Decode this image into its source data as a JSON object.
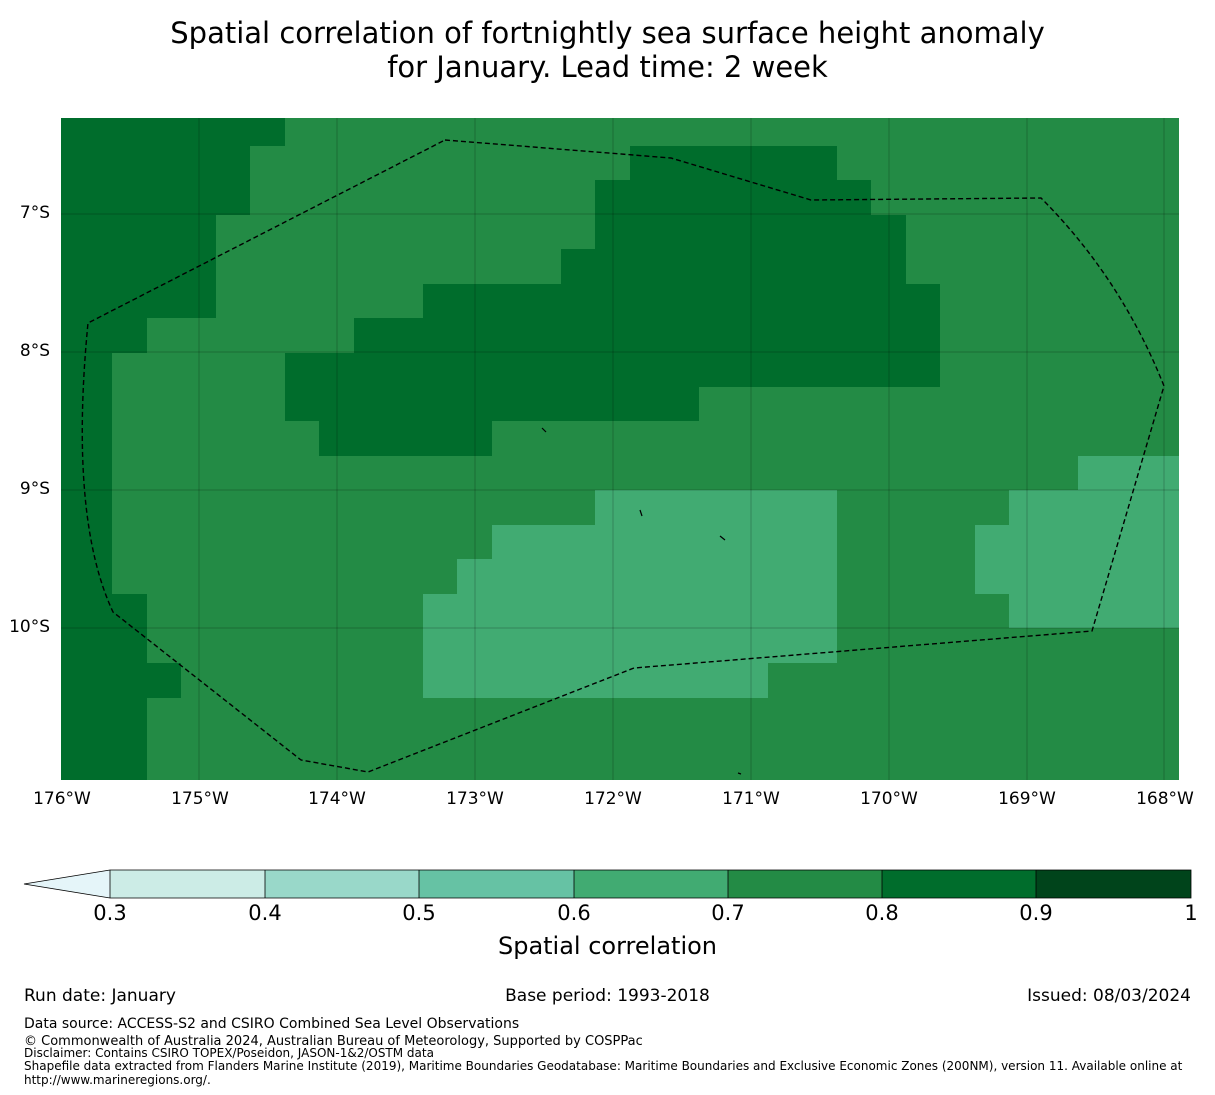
{
  "title": {
    "line1": "Spatial correlation of fortnightly sea surface height anomaly",
    "line2": "for January. Lead time: 2 week"
  },
  "map": {
    "lat_labels": [
      "7°S",
      "8°S",
      "9°S",
      "10°S"
    ],
    "lon_labels": [
      "176°W",
      "175°W",
      "174°W",
      "173°W",
      "172°W",
      "171°W",
      "170°W",
      "169°W",
      "168°W"
    ],
    "colors": {
      "c06_07": "#41ab72",
      "c07_08": "#238b45",
      "c08_09": "#006d2c",
      "border": "#000000"
    }
  },
  "colorbar": {
    "label": "Spatial correlation",
    "ticks": [
      "0.3",
      "0.4",
      "0.5",
      "0.6",
      "0.7",
      "0.8",
      "0.9",
      "1"
    ],
    "bins": [
      {
        "range": "<0.3",
        "color": "#e5f5f9"
      },
      {
        "range": "0.3-0.4",
        "color": "#ccece6"
      },
      {
        "range": "0.4-0.5",
        "color": "#99d8c9"
      },
      {
        "range": "0.5-0.6",
        "color": "#66c2a4"
      },
      {
        "range": "0.6-0.7",
        "color": "#41ab72"
      },
      {
        "range": "0.7-0.8",
        "color": "#238b45"
      },
      {
        "range": "0.8-0.9",
        "color": "#006d2c"
      },
      {
        "range": "0.9-1",
        "color": "#00441b"
      }
    ]
  },
  "footer": {
    "run_date": "Run date: January",
    "base_period": "Base period: 1993-2018",
    "issued": "Issued: 08/03/2024",
    "data_source": "Data source: ACCESS-S2 and CSIRO Combined Sea Level Observations",
    "copyright": "© Commonwealth of Australia 2024, Australian Bureau of Meteorology, Supported by COSPPac",
    "disclaimer": "Disclaimer: Contains CSIRO TOPEX/Poseidon, JASON-1&2/OSTM data",
    "shapefile_line1": "Shapefile data extracted from Flanders Marine Institute (2019), Maritime Boundaries Geodatabase: Maritime Boundaries and Exclusive Economic Zones (200NM), version 11. Available online at",
    "shapefile_line2": "http://www.marineregions.org/."
  }
}
